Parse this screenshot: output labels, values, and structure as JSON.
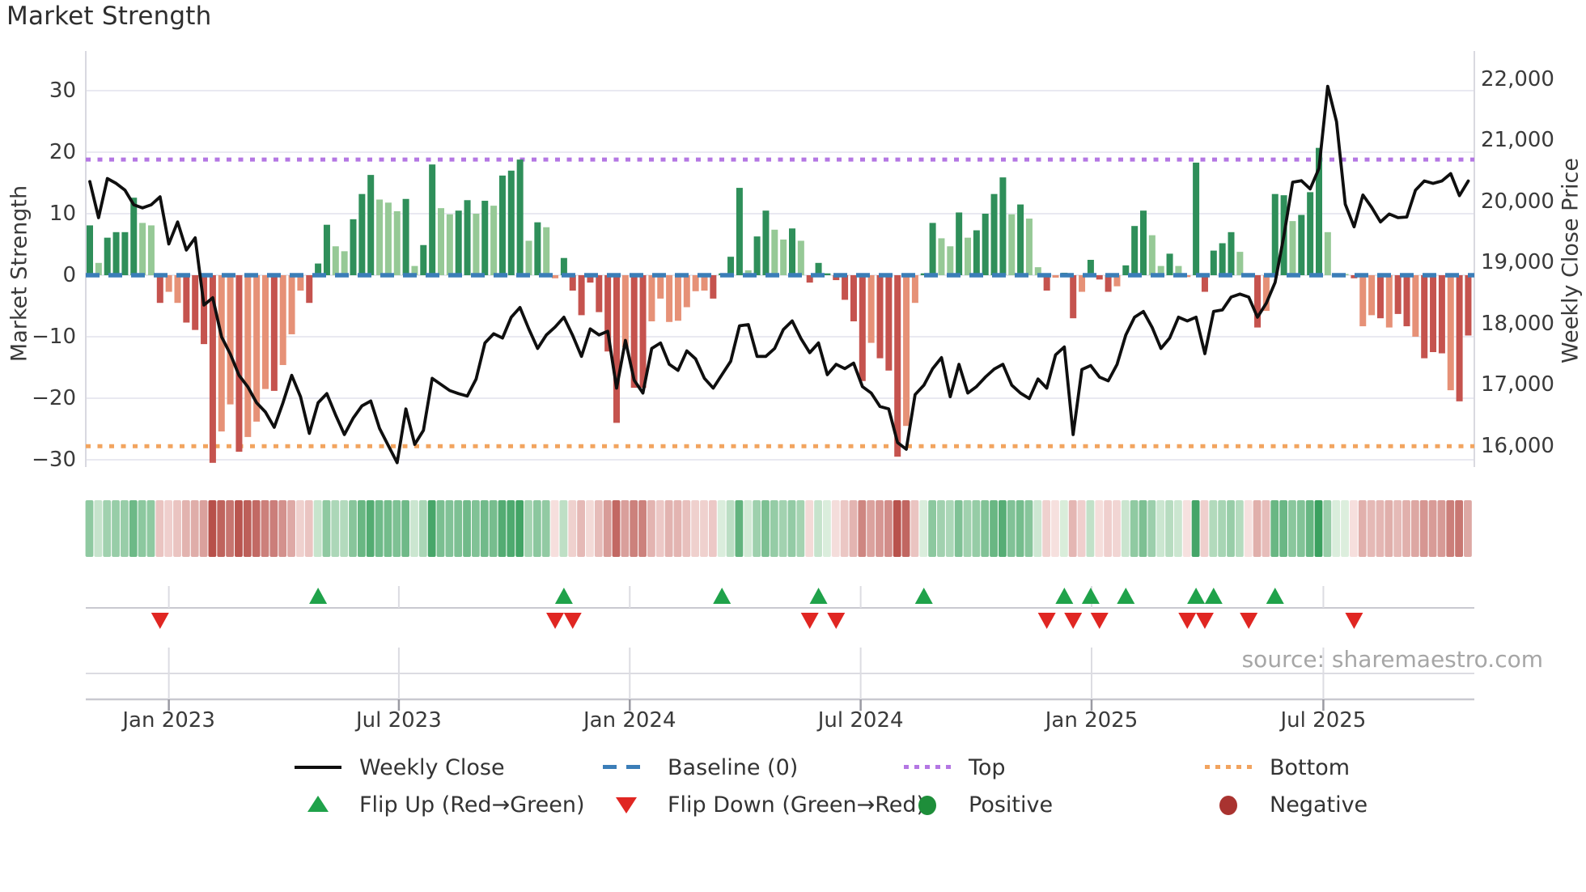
{
  "title": "Market Strength",
  "source": "source: sharemaestro.com",
  "axes": {
    "left": {
      "title": "Market Strength",
      "ticks": [
        "30",
        "20",
        "10",
        "0",
        "−10",
        "−20",
        "−30"
      ],
      "tick_values": [
        30,
        20,
        10,
        0,
        -10,
        -20,
        -30
      ],
      "range": [
        -33,
        33
      ]
    },
    "right": {
      "title": "Weekly Close Price",
      "ticks": [
        "22,000",
        "21,000",
        "20,000",
        "19,000",
        "18,000",
        "17,000",
        "16,000"
      ],
      "tick_values": [
        22000,
        21000,
        20000,
        19000,
        18000,
        17000,
        16000
      ]
    },
    "x": {
      "labels": [
        "Jan 2023",
        "Jul 2023",
        "Jan 2024",
        "Jul 2024",
        "Jan 2025",
        "Jul 2025"
      ],
      "week_positions": [
        9,
        35.2,
        61.5,
        87.8,
        114.1,
        140.5
      ]
    }
  },
  "legend": {
    "weekly_close": "Weekly Close",
    "baseline": "Baseline (0)",
    "top": "Top",
    "bottom": "Bottom",
    "flip_up": "Flip Up (Red→Green)",
    "flip_down": "Flip Down (Green→Red)",
    "positive": "Positive",
    "negative": "Negative"
  },
  "colors": {
    "green_dark": "#2f8f5a",
    "green_light": "#96c996",
    "red_dark": "#c5534e",
    "red_light": "#e69177",
    "baseline_blue": "#3b7eb8",
    "top_purple": "#b477e3",
    "bottom_orange": "#f2a45f",
    "close_line": "#0f0f0f",
    "flip_up": "#1fa24a",
    "flip_down": "#e02622",
    "positive_dot": "#1e8e3a",
    "negative_dot": "#a93330",
    "grid": "#e9e9f1",
    "spine": "#d9d9e0",
    "axis_text": "#3a3a3a",
    "source_text": "#a6a6a6"
  },
  "chart_data": {
    "type": "combo",
    "title": "Market Strength",
    "x_unit": "week",
    "n_weeks": 158,
    "baseline": 0,
    "top_line": 18.8,
    "bottom_line": -27.8,
    "legend_position": "bottom",
    "strength_values": [
      8.1,
      2.0,
      6.1,
      7.0,
      7.0,
      12.6,
      8.5,
      8.1,
      -4.5,
      -2.7,
      -4.5,
      -7.7,
      -8.9,
      -11.2,
      -30.5,
      -25.4,
      -21.0,
      -28.7,
      -26.3,
      -23.8,
      -18.5,
      -18.8,
      -14.6,
      -9.6,
      -2.5,
      -4.5,
      1.9,
      8.2,
      4.7,
      3.9,
      9.1,
      13.2,
      16.3,
      12.3,
      11.8,
      10.4,
      12.4,
      1.5,
      4.9,
      18.0,
      10.9,
      9.9,
      10.5,
      12.2,
      10.0,
      12.1,
      11.3,
      16.2,
      17.0,
      18.8,
      5.6,
      8.6,
      7.8,
      -0.5,
      2.8,
      -2.5,
      -6.5,
      -1.2,
      -6.0,
      -12.4,
      -24.0,
      -11.7,
      -18.3,
      -18.3,
      -7.5,
      -3.8,
      -7.6,
      -7.4,
      -5.2,
      -2.6,
      -2.5,
      -3.8,
      0.3,
      3.0,
      14.2,
      0.8,
      6.3,
      10.5,
      7.4,
      5.8,
      7.6,
      5.6,
      -1.2,
      2.0,
      0.3,
      -0.8,
      -4.0,
      -7.5,
      -17.2,
      -11.0,
      -13.5,
      -15.5,
      -29.5,
      -24.5,
      -4.5,
      0.3,
      8.5,
      6.0,
      4.7,
      10.2,
      6.1,
      7.3,
      10.0,
      13.2,
      15.9,
      9.9,
      11.5,
      9.2,
      1.3,
      -2.5,
      -0.4,
      0.4,
      -7.0,
      -2.7,
      2.5,
      -0.7,
      -2.7,
      -1.8,
      1.6,
      8.0,
      10.5,
      6.5,
      1.5,
      3.5,
      1.5,
      -0.3,
      18.3,
      -2.7,
      4.0,
      5.2,
      7.0,
      3.8,
      -0.3,
      -8.5,
      -5.8,
      13.2,
      13.0,
      8.8,
      9.8,
      13.5,
      20.7,
      7.0,
      0.3,
      0.2,
      -0.5,
      -8.3,
      -6.5,
      -7.0,
      -8.5,
      -6.3,
      -8.3,
      -10.0,
      -13.5,
      -12.5,
      -12.7,
      -18.7,
      -20.5,
      -9.8
    ],
    "strength_shades": "dlddddlldllddddlldllldllldddlldddllldlddllddldldddldlldddddddlddllllllldddd lddlldldddddddldddllddlldlddddldlldlddlddd ldddlldllddddd lldlddldddldl dlldlddldddldddl",
    "weekly_close": [
      20320,
      19730,
      20370,
      20290,
      20180,
      19940,
      19890,
      19940,
      20070,
      19300,
      19660,
      19200,
      19400,
      18300,
      18420,
      17780,
      17500,
      17150,
      16960,
      16700,
      16550,
      16300,
      16700,
      17150,
      16800,
      16200,
      16700,
      16850,
      16500,
      16180,
      16450,
      16650,
      16730,
      16280,
      16000,
      15720,
      16600,
      16020,
      16250,
      17100,
      17000,
      16900,
      16850,
      16810,
      17090,
      17680,
      17830,
      17760,
      18100,
      18260,
      17910,
      17590,
      17810,
      17940,
      18100,
      17800,
      17460,
      17910,
      17810,
      17870,
      16940,
      17720,
      17070,
      16860,
      17590,
      17680,
      17330,
      17230,
      17550,
      17420,
      17100,
      16940,
      17160,
      17380,
      17960,
      17980,
      17460,
      17460,
      17590,
      17900,
      18040,
      17750,
      17520,
      17680,
      17160,
      17330,
      17260,
      17350,
      16965,
      16860,
      16640,
      16600,
      16050,
      15940,
      16835,
      16990,
      17260,
      17440,
      16800,
      17330,
      16860,
      16965,
      17120,
      17250,
      17330,
      16990,
      16860,
      16770,
      17090,
      16940,
      17485,
      17615,
      16180,
      17245,
      17310,
      17120,
      17060,
      17330,
      17810,
      18100,
      18195,
      17935,
      17590,
      17760,
      18100,
      18040,
      18100,
      17505,
      18195,
      18220,
      18430,
      18480,
      18430,
      18100,
      18330,
      18670,
      19430,
      20310,
      20335,
      20200,
      20535,
      21880,
      21300,
      19950,
      19580,
      20100,
      19900,
      19660,
      19790,
      19730,
      19740,
      20180,
      20330,
      20290,
      20330,
      20450,
      20090,
      20330
    ],
    "flip_up_weeks": [
      26,
      54,
      72,
      83,
      95,
      111,
      114,
      118,
      126,
      128,
      135
    ],
    "flip_down_weeks": [
      8,
      53,
      55,
      82,
      85,
      109,
      112,
      115,
      125,
      127,
      132,
      144
    ]
  }
}
